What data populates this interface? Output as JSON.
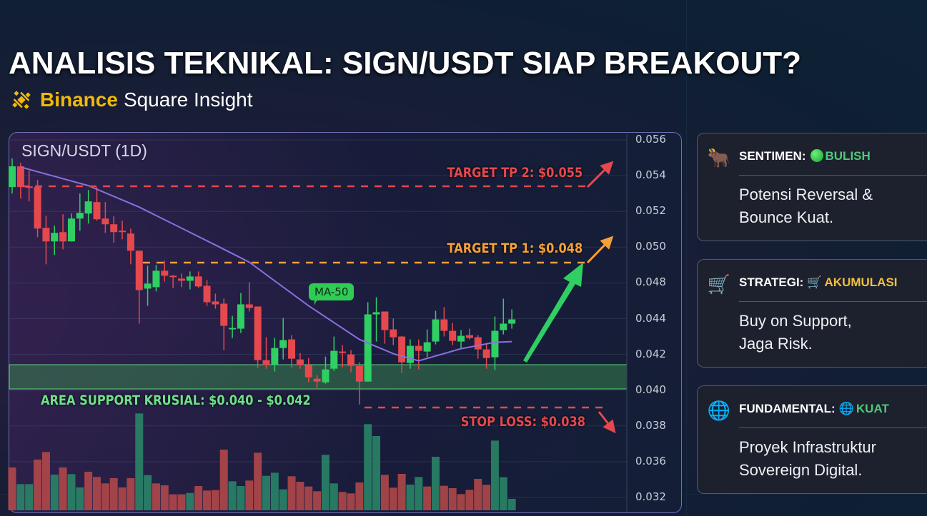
{
  "header": {
    "title": "ANALISIS TEKNIKAL: SIGN/USDT SIAP BREAKOUT?",
    "brand": "Binance",
    "brand_suffix": "Square Insight",
    "brand_icon": "binance-logo-icon",
    "brand_color": "#f0b90b"
  },
  "chart_data": {
    "type": "candlestick",
    "title": "SIGN/USDT (1D)",
    "y_ticks": [
      "0.056",
      "0.054",
      "0.052",
      "0.050",
      "0.048",
      "0.044",
      "0.042",
      "0.040",
      "0.038",
      "0.036",
      "0.032"
    ],
    "y_tick_values": [
      0.056,
      0.054,
      0.052,
      0.05,
      0.048,
      0.044,
      0.042,
      0.04,
      0.038,
      0.036,
      0.032
    ],
    "grid": true,
    "candle_fields": [
      "open",
      "high",
      "low",
      "close"
    ],
    "candles": [
      [
        0.05336,
        0.05496,
        0.053,
        0.05452
      ],
      [
        0.05452,
        0.05472,
        0.05272,
        0.05336
      ],
      [
        0.0534,
        0.05428,
        0.05256,
        0.05336
      ],
      [
        0.05336,
        0.05376,
        0.05056,
        0.05104
      ],
      [
        0.05108,
        0.05176,
        0.04904,
        0.05032
      ],
      [
        0.05032,
        0.0512,
        0.04956,
        0.0508
      ],
      [
        0.05084,
        0.05184,
        0.04988,
        0.05032
      ],
      [
        0.05032,
        0.05188,
        0.05032,
        0.0516
      ],
      [
        0.0516,
        0.053,
        0.05092,
        0.05192
      ],
      [
        0.05188,
        0.0532,
        0.05132,
        0.05256
      ],
      [
        0.05252,
        0.05336,
        0.05148,
        0.05156
      ],
      [
        0.0516,
        0.05252,
        0.0508,
        0.05128
      ],
      [
        0.05128,
        0.05172,
        0.05024,
        0.05084
      ],
      [
        0.05092,
        0.05148,
        0.05044,
        0.05084
      ],
      [
        0.05076,
        0.05104,
        0.04904,
        0.0498
      ],
      [
        0.0498,
        0.0498,
        0.04372,
        0.0472
      ],
      [
        0.04736,
        0.04896,
        0.04544,
        0.04792
      ],
      [
        0.04752,
        0.049,
        0.04704,
        0.04868
      ],
      [
        0.04868,
        0.04924,
        0.04808,
        0.0484
      ],
      [
        0.0484,
        0.04844,
        0.04744,
        0.04836
      ],
      [
        0.04824,
        0.04852,
        0.04752,
        0.04812
      ],
      [
        0.04812,
        0.04864,
        0.04728,
        0.04836
      ],
      [
        0.04836,
        0.04864,
        0.04744,
        0.0476
      ],
      [
        0.04768,
        0.04816,
        0.04544,
        0.04584
      ],
      [
        0.04592,
        0.0468,
        0.04512,
        0.0456
      ],
      [
        0.04568,
        0.04624,
        0.04224,
        0.0436
      ],
      [
        0.0434,
        0.04432,
        0.04292,
        0.04348
      ],
      [
        0.04344,
        0.04688,
        0.0432,
        0.0456
      ],
      [
        0.0456,
        0.04804,
        0.0448,
        0.0452
      ],
      [
        0.04536,
        0.04536,
        0.04124,
        0.04168
      ],
      [
        0.04168,
        0.04296,
        0.0412,
        0.0414
      ],
      [
        0.0414,
        0.04292,
        0.04104,
        0.04236
      ],
      [
        0.04236,
        0.04408,
        0.04172,
        0.0428
      ],
      [
        0.04284,
        0.04308,
        0.04124,
        0.04176
      ],
      [
        0.04172,
        0.04208,
        0.0412,
        0.0414
      ],
      [
        0.0414,
        0.0418,
        0.04044,
        0.04072
      ],
      [
        0.04064,
        0.04084,
        0.04004,
        0.04048
      ],
      [
        0.04044,
        0.04188,
        0.04036,
        0.04116
      ],
      [
        0.0412,
        0.043,
        0.04108,
        0.0422
      ],
      [
        0.04216,
        0.04252,
        0.04128,
        0.04208
      ],
      [
        0.042,
        0.04224,
        0.041,
        0.04136
      ],
      [
        0.04136,
        0.04156,
        0.0392,
        0.04048
      ],
      [
        0.04048,
        0.04584,
        0.04048,
        0.04448
      ],
      [
        0.04448,
        0.0464,
        0.04272,
        0.04472
      ],
      [
        0.0448,
        0.0448,
        0.0426,
        0.04336
      ],
      [
        0.0434,
        0.044,
        0.04252,
        0.04296
      ],
      [
        0.043,
        0.04304,
        0.04096,
        0.04156
      ],
      [
        0.04152,
        0.04284,
        0.0412,
        0.04248
      ],
      [
        0.04248,
        0.04284,
        0.04116,
        0.0422
      ],
      [
        0.04216,
        0.0434,
        0.04184,
        0.04268
      ],
      [
        0.04272,
        0.04488,
        0.04256,
        0.04396
      ],
      [
        0.04396,
        0.04528,
        0.043,
        0.04332
      ],
      [
        0.04332,
        0.04376,
        0.04252,
        0.04276
      ],
      [
        0.04272,
        0.04336,
        0.04232,
        0.04304
      ],
      [
        0.04308,
        0.04344,
        0.04284,
        0.04292
      ],
      [
        0.04296,
        0.04308,
        0.04176,
        0.04228
      ],
      [
        0.04228,
        0.04264,
        0.0412,
        0.0418
      ],
      [
        0.04184,
        0.04424,
        0.04112,
        0.04332
      ],
      [
        0.04336,
        0.04624,
        0.04312,
        0.04372
      ],
      [
        0.04372,
        0.04504,
        0.04344,
        0.04396
      ]
    ],
    "ma50": {
      "label": "MA-50",
      "points": [
        [
          2,
          0.05448
        ],
        [
          10,
          0.05344
        ],
        [
          16,
          0.05224
        ],
        [
          25,
          0.05012
        ],
        [
          29,
          0.04916
        ],
        [
          36,
          0.04544
        ],
        [
          42,
          0.04284
        ],
        [
          46,
          0.04204
        ],
        [
          49,
          0.04164
        ],
        [
          54,
          0.04232
        ],
        [
          58,
          0.04268
        ],
        [
          60,
          0.04272
        ]
      ]
    },
    "volume_relative": [
      180,
      110,
      110,
      213,
      245,
      150,
      180,
      152,
      96,
      162,
      140,
      113,
      135,
      96,
      135,
      407,
      148,
      113,
      105,
      67,
      67,
      73,
      102,
      83,
      85,
      255,
      122,
      102,
      125,
      242,
      145,
      158,
      88,
      143,
      120,
      100,
      80,
      233,
      113,
      77,
      71,
      117,
      362,
      312,
      149,
      95,
      153,
      108,
      140,
      100,
      225,
      103,
      93,
      68,
      86,
      132,
      107,
      293,
      139,
      48
    ],
    "volume_up": [
      false,
      true,
      true,
      false,
      false,
      true,
      false,
      true,
      true,
      false,
      false,
      false,
      false,
      false,
      false,
      true,
      true,
      false,
      false,
      false,
      false,
      true,
      false,
      false,
      false,
      false,
      true,
      true,
      false,
      false,
      true,
      true,
      true,
      false,
      false,
      false,
      false,
      true,
      true,
      false,
      false,
      false,
      true,
      true,
      false,
      false,
      false,
      true,
      true,
      false,
      true,
      false,
      false,
      false,
      false,
      false,
      false,
      true,
      true,
      true
    ],
    "levels": {
      "tp2": "TARGET TP 2: $0.055",
      "tp1": "TARGET TP 1: $0.048",
      "stop_loss": "STOP LOSS: $0.038",
      "support": "AREA SUPPORT KRUSIAL: $0.040 - $0.042"
    },
    "colors": {
      "up": "#2fcf63",
      "down": "#e5484d",
      "ma": "#8b6fe0",
      "tp2": "#e5484d",
      "tp1": "#f5a03a",
      "support": "#5fd37a",
      "stop": "#e5484d",
      "arrow_up": "#2fcf63"
    }
  },
  "cards": [
    {
      "icon": "bull-icon",
      "label": "SENTIMEN:",
      "badge_icon": "green-circle-icon",
      "value": "BULISH",
      "value_color": "#4fc97a",
      "lines": [
        "Potensi Reversal &",
        "Bounce Kuat."
      ]
    },
    {
      "icon": "shopping-cart-icon",
      "label": "STRATEGI:",
      "badge_icon": "shopping-cart-icon",
      "value": "AKUMULASI",
      "value_color": "#f0c040",
      "lines": [
        "Buy on Support,",
        "Jaga Risk."
      ]
    },
    {
      "icon": "globe-icon",
      "label": "FUNDAMENTAL:",
      "badge_icon": "globe-icon",
      "value": "KUAT",
      "value_color": "#4fc97a",
      "lines": [
        "Proyek Infrastruktur",
        "Sovereign Digital."
      ]
    }
  ]
}
